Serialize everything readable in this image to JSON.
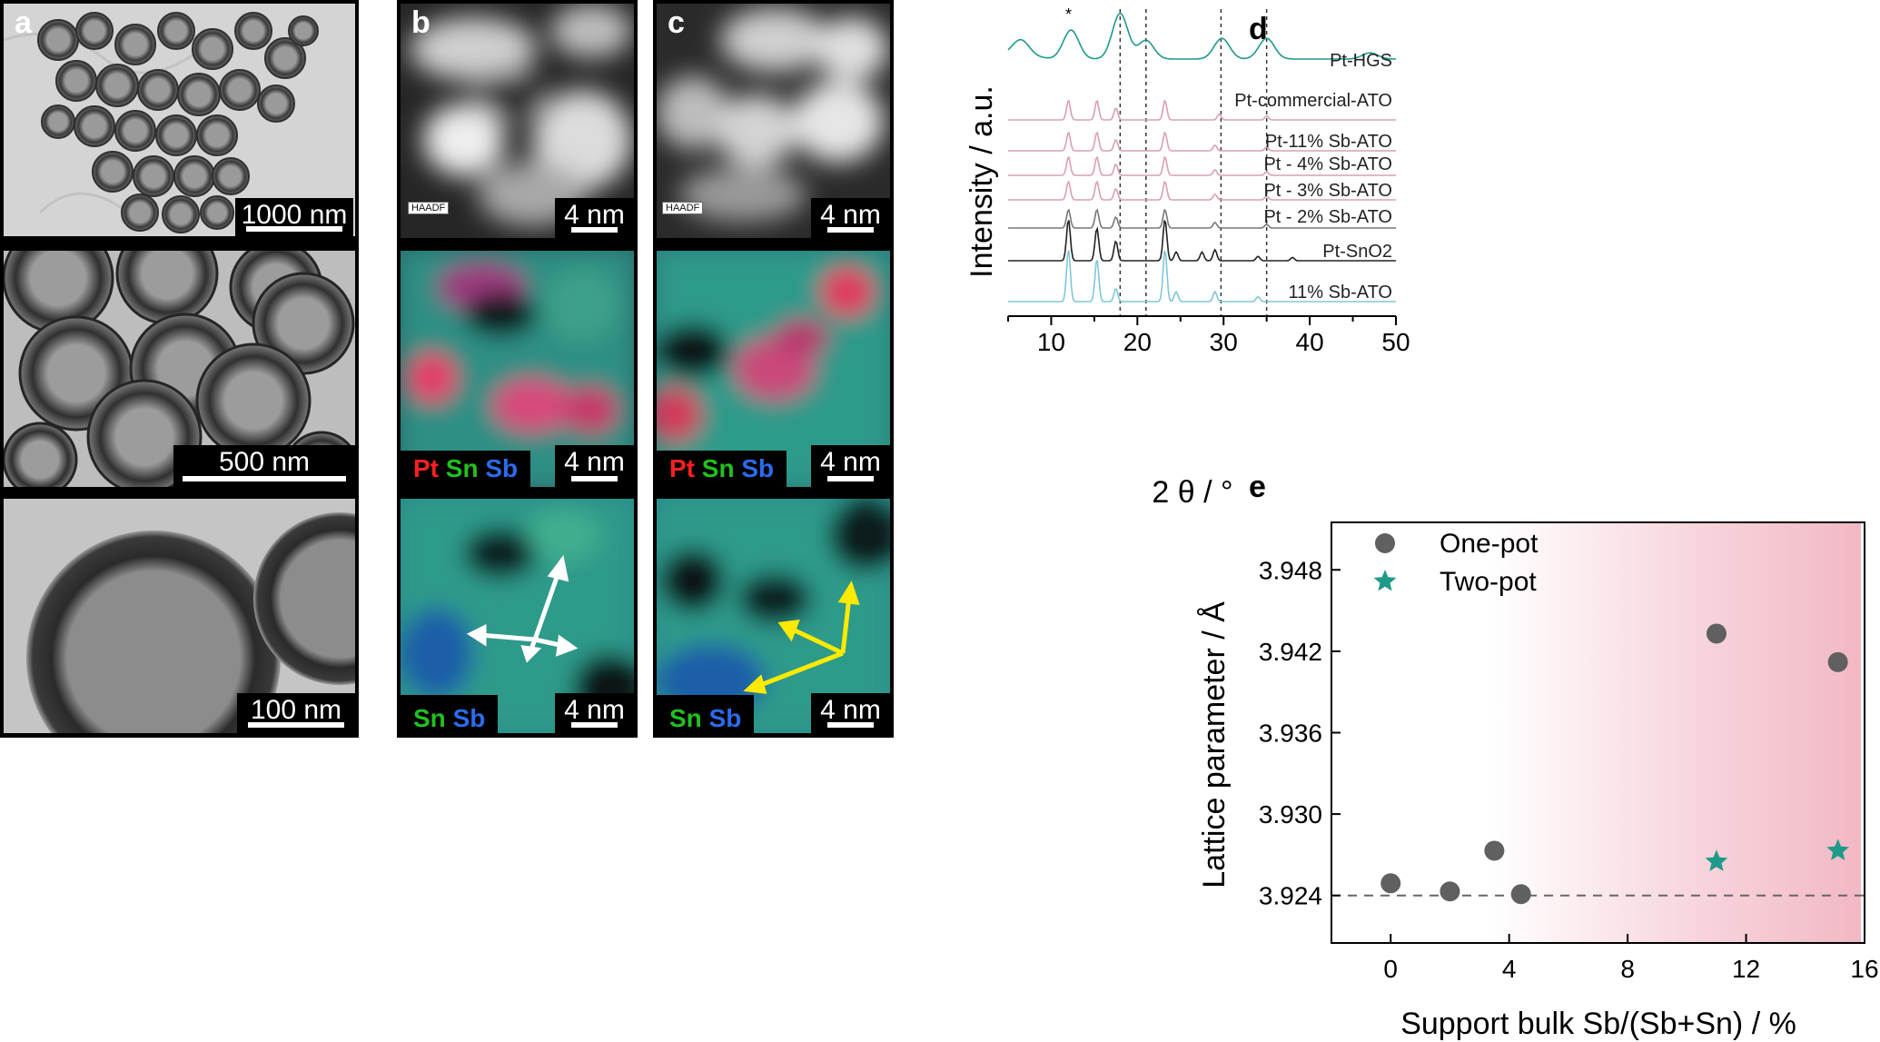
{
  "panel_labels": {
    "a": "a",
    "b": "b",
    "c": "c",
    "d": "d",
    "e": "e"
  },
  "panel_a": {
    "scales": [
      "1000 nm",
      "500 nm",
      "100 nm"
    ]
  },
  "panel_b": {
    "haadf_tag": "HAADF",
    "scales": [
      "4 nm",
      "4 nm",
      "4 nm"
    ],
    "legend1": {
      "pt": "Pt",
      "sn": "Sn",
      "sb": "Sb"
    },
    "legend2": {
      "sn": "Sn",
      "sb": "Sb"
    }
  },
  "panel_c": {
    "haadf_tag": "HAADF",
    "scales": [
      "4 nm",
      "4 nm",
      "4 nm"
    ],
    "legend1": {
      "pt": "Pt",
      "sn": "Sn",
      "sb": "Sb"
    },
    "legend2": {
      "sn": "Sn",
      "sb": "Sb"
    }
  },
  "colors": {
    "pt": "#ff2020",
    "sn": "#22c020",
    "sb": "#2a6cf0",
    "teal": "#1f9a8a",
    "pink": "#d9a0ad",
    "dark": "#555555",
    "lightblue": "#7fc8d8"
  },
  "chart_data": [
    {
      "type": "line",
      "panel": "d",
      "xlabel": "2 θ / °",
      "ylabel": "Intensity / a.u.",
      "xlim": [
        5,
        50
      ],
      "xticks": [
        "10",
        "20",
        "30",
        "40",
        "50"
      ],
      "reference_lines_x": [
        18,
        21,
        29.7,
        35
      ],
      "asterisk": "*",
      "series": [
        {
          "name": "Pt-HGS",
          "color": "#1f9a8a",
          "peaks": [
            [
              6.5,
              0.6
            ],
            [
              12.3,
              1.4
            ],
            [
              18.0,
              2.2
            ],
            [
              21.0,
              0.9
            ],
            [
              29.8,
              1.0
            ],
            [
              35.0,
              1.0
            ],
            [
              47,
              0.3
            ]
          ]
        },
        {
          "name": "Pt-commercial-ATO",
          "color": "#d9a0ad",
          "peaks": [
            [
              12.0,
              1.0
            ],
            [
              15.3,
              1.0
            ],
            [
              17.5,
              0.6
            ],
            [
              23.2,
              1.0
            ],
            [
              29.5,
              0.3
            ],
            [
              35.0,
              0.2
            ]
          ]
        },
        {
          "name": "Pt-11% Sb-ATO",
          "color": "#d9a0ad",
          "peaks": [
            [
              12.0,
              1.0
            ],
            [
              15.3,
              1.0
            ],
            [
              17.5,
              0.6
            ],
            [
              23.2,
              1.0
            ],
            [
              29.0,
              0.3
            ],
            [
              35.0,
              0.2
            ]
          ]
        },
        {
          "name": "Pt - 4% Sb-ATO",
          "color": "#d9a0ad",
          "peaks": [
            [
              12.0,
              1.0
            ],
            [
              15.3,
              1.0
            ],
            [
              17.5,
              0.6
            ],
            [
              23.2,
              1.0
            ],
            [
              29.0,
              0.3
            ],
            [
              35.0,
              0.2
            ]
          ]
        },
        {
          "name": "Pt - 3% Sb-ATO",
          "color": "#d9a0ad",
          "peaks": [
            [
              12.0,
              1.0
            ],
            [
              15.3,
              1.0
            ],
            [
              17.5,
              0.6
            ],
            [
              23.2,
              1.0
            ],
            [
              29.0,
              0.3
            ],
            [
              35.0,
              0.2
            ]
          ]
        },
        {
          "name": "Pt - 2% Sb-ATO",
          "color": "#777777",
          "peaks": [
            [
              12.0,
              1.0
            ],
            [
              15.3,
              1.0
            ],
            [
              17.5,
              0.6
            ],
            [
              23.2,
              1.0
            ],
            [
              29.0,
              0.3
            ],
            [
              35.0,
              0.2
            ]
          ]
        },
        {
          "name": "Pt-SnO2",
          "color": "#222222",
          "peaks": [
            [
              12.0,
              1.9
            ],
            [
              15.3,
              1.5
            ],
            [
              17.5,
              0.9
            ],
            [
              23.2,
              1.9
            ],
            [
              24.5,
              0.4
            ],
            [
              27.5,
              0.4
            ],
            [
              29.0,
              0.5
            ],
            [
              34.0,
              0.2
            ],
            [
              38,
              0.15
            ]
          ]
        },
        {
          "name": "11% Sb-ATO",
          "color": "#7fc8d8",
          "peaks": [
            [
              12.0,
              1.6
            ],
            [
              15.3,
              1.3
            ],
            [
              17.5,
              0.4
            ],
            [
              23.2,
              1.6
            ],
            [
              24.5,
              0.3
            ],
            [
              29.0,
              0.3
            ],
            [
              34.0,
              0.15
            ]
          ]
        }
      ]
    },
    {
      "type": "scatter",
      "panel": "e",
      "xlabel": "Support bulk Sb/(Sb+Sn) / %",
      "ylabel": "Lattice parameter / Å",
      "xlim": [
        -2,
        16
      ],
      "ylim": [
        3.9205,
        3.9515
      ],
      "xticks": [
        "0",
        "4",
        "8",
        "12",
        "16"
      ],
      "yticks": [
        "3.924",
        "3.930",
        "3.936",
        "3.942",
        "3.948"
      ],
      "reference_line_y": 3.924,
      "series": [
        {
          "name": "One-pot",
          "marker": "circle",
          "color": "#606060",
          "x": [
            0,
            2,
            3.5,
            4.4,
            11,
            15.1
          ],
          "y": [
            3.9249,
            3.9243,
            3.9273,
            3.9241,
            3.9433,
            3.9412
          ]
        },
        {
          "name": "Two-pot",
          "marker": "star",
          "color": "#1f9a8a",
          "x": [
            11,
            15.1
          ],
          "y": [
            3.9265,
            3.9273
          ]
        }
      ]
    }
  ]
}
